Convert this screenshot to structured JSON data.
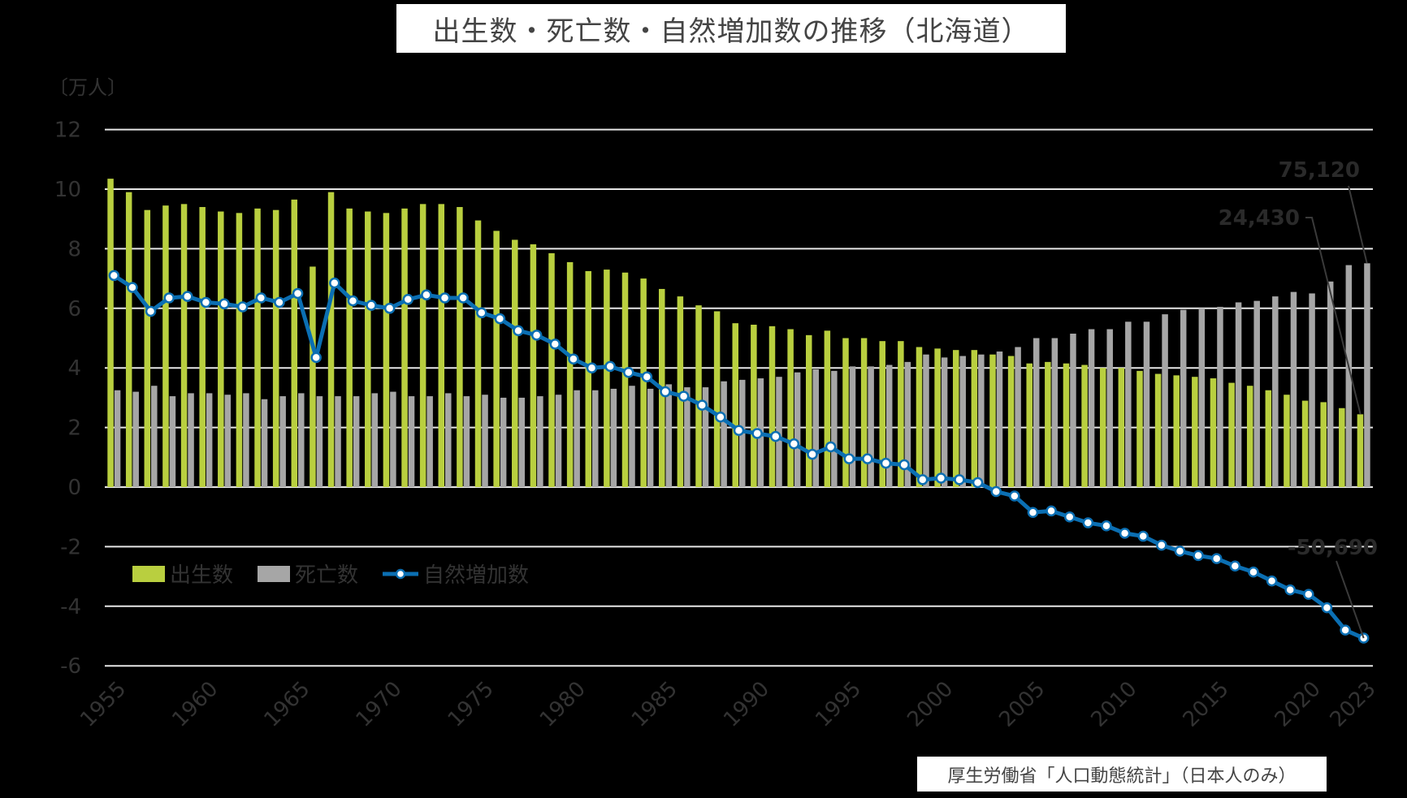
{
  "title": "出生数・死亡数・自然増加数の推移（北海道）",
  "unit_label": "〔万人〕",
  "source": "厚生労働省「人口動態統計」（日本人のみ）",
  "legend": [
    {
      "label": "出生数",
      "color": "#b9cf3f",
      "type": "bar"
    },
    {
      "label": "死亡数",
      "color": "#a6a6a6",
      "type": "bar"
    },
    {
      "label": "自然増加数",
      "color": "#0b6fb3",
      "type": "line"
    }
  ],
  "annotations": [
    {
      "label": "75,120",
      "target": "死亡数 2023"
    },
    {
      "label": "24,430",
      "target": "出生数 2023"
    },
    {
      "label": "-50,690",
      "target": "自然増加数 2023"
    }
  ],
  "chart_data": {
    "type": "bar",
    "title": "出生数・死亡数・自然増加数の推移（北海道）",
    "xlabel": "",
    "ylabel": "〔万人〕",
    "ylim": [
      -6,
      12
    ],
    "yticks": [
      12,
      10,
      8,
      6,
      4,
      2,
      0,
      -2,
      -4,
      -6
    ],
    "xtick_labels": [
      "1955",
      "1960",
      "1965",
      "1970",
      "1975",
      "1980",
      "1985",
      "1990",
      "1995",
      "2000",
      "2005",
      "2010",
      "2015",
      "2020",
      "2023"
    ],
    "grid": true,
    "legend_position": "inside lower-left",
    "x": [
      1955,
      1956,
      1957,
      1958,
      1959,
      1960,
      1961,
      1962,
      1963,
      1964,
      1965,
      1966,
      1967,
      1968,
      1969,
      1970,
      1971,
      1972,
      1973,
      1974,
      1975,
      1976,
      1977,
      1978,
      1979,
      1980,
      1981,
      1982,
      1983,
      1984,
      1985,
      1986,
      1987,
      1988,
      1989,
      1990,
      1991,
      1992,
      1993,
      1994,
      1995,
      1996,
      1997,
      1998,
      1999,
      2000,
      2001,
      2002,
      2003,
      2004,
      2005,
      2006,
      2007,
      2008,
      2009,
      2010,
      2011,
      2012,
      2013,
      2014,
      2015,
      2016,
      2017,
      2018,
      2019,
      2020,
      2021,
      2022,
      2023
    ],
    "series": [
      {
        "name": "出生数",
        "type": "bar",
        "color": "#b9cf3f",
        "values": [
          10.35,
          9.9,
          9.3,
          9.45,
          9.5,
          9.4,
          9.25,
          9.2,
          9.35,
          9.3,
          9.65,
          7.4,
          9.9,
          9.35,
          9.25,
          9.2,
          9.35,
          9.5,
          9.5,
          9.4,
          8.95,
          8.6,
          8.3,
          8.15,
          7.85,
          7.55,
          7.25,
          7.3,
          7.2,
          7.0,
          6.65,
          6.4,
          6.1,
          5.9,
          5.5,
          5.45,
          5.4,
          5.3,
          5.1,
          5.25,
          5.0,
          5.0,
          4.9,
          4.9,
          4.7,
          4.65,
          4.6,
          4.6,
          4.45,
          4.4,
          4.15,
          4.2,
          4.15,
          4.1,
          4.0,
          4.0,
          3.9,
          3.8,
          3.75,
          3.7,
          3.65,
          3.5,
          3.4,
          3.25,
          3.1,
          2.9,
          2.85,
          2.65,
          2.443
        ]
      },
      {
        "name": "死亡数",
        "type": "bar",
        "color": "#a6a6a6",
        "values": [
          3.25,
          3.2,
          3.4,
          3.05,
          3.15,
          3.15,
          3.1,
          3.15,
          2.95,
          3.05,
          3.15,
          3.05,
          3.05,
          3.05,
          3.15,
          3.2,
          3.05,
          3.05,
          3.15,
          3.05,
          3.1,
          3.0,
          3.0,
          3.05,
          3.1,
          3.25,
          3.25,
          3.3,
          3.4,
          3.3,
          3.45,
          3.35,
          3.35,
          3.55,
          3.6,
          3.65,
          3.7,
          3.85,
          3.95,
          3.9,
          4.05,
          4.05,
          4.1,
          4.2,
          4.45,
          4.35,
          4.4,
          4.45,
          4.55,
          4.7,
          5.0,
          5.0,
          5.15,
          5.3,
          5.3,
          5.55,
          5.55,
          5.8,
          5.95,
          6.0,
          6.05,
          6.2,
          6.25,
          6.4,
          6.55,
          6.5,
          6.9,
          7.45,
          7.512
        ]
      },
      {
        "name": "自然増加数",
        "type": "line",
        "color": "#0b6fb3",
        "values": [
          7.1,
          6.7,
          5.9,
          6.35,
          6.4,
          6.2,
          6.15,
          6.05,
          6.35,
          6.2,
          6.5,
          4.35,
          6.85,
          6.25,
          6.1,
          6.0,
          6.3,
          6.45,
          6.35,
          6.35,
          5.85,
          5.65,
          5.25,
          5.1,
          4.8,
          4.3,
          4.0,
          4.05,
          3.85,
          3.7,
          3.2,
          3.05,
          2.75,
          2.35,
          1.9,
          1.8,
          1.7,
          1.45,
          1.1,
          1.35,
          0.95,
          0.95,
          0.8,
          0.75,
          0.25,
          0.3,
          0.25,
          0.15,
          -0.15,
          -0.3,
          -0.85,
          -0.8,
          -1.0,
          -1.2,
          -1.3,
          -1.55,
          -1.65,
          -1.95,
          -2.15,
          -2.3,
          -2.4,
          -2.65,
          -2.85,
          -3.15,
          -3.45,
          -3.6,
          -4.05,
          -4.8,
          -5.069
        ]
      }
    ]
  }
}
